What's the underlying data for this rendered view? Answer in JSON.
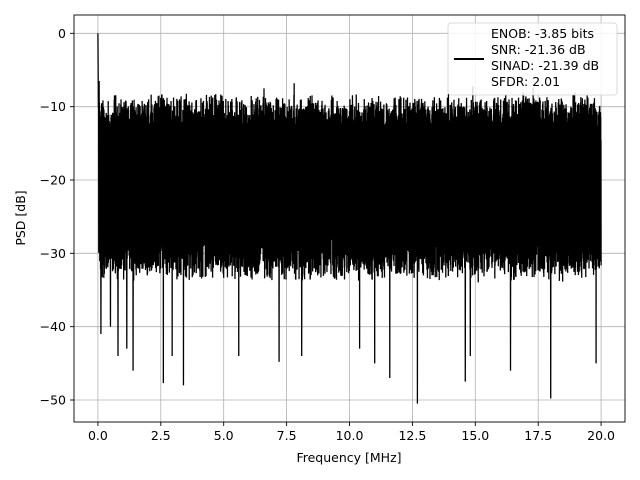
{
  "chart_data": {
    "type": "line",
    "title": "",
    "xlabel": "Frequency [MHz]",
    "ylabel": "PSD [dB]",
    "xlim": [
      -0.95,
      20.95
    ],
    "ylim": [
      -53,
      2.5
    ],
    "xticks": [
      0.0,
      2.5,
      5.0,
      7.5,
      10.0,
      12.5,
      15.0,
      17.5,
      20.0
    ],
    "xtick_labels": [
      "0.0",
      "2.5",
      "5.0",
      "7.5",
      "10.0",
      "12.5",
      "15.0",
      "17.5",
      "20.0"
    ],
    "yticks": [
      0,
      -10,
      -20,
      -30,
      -40,
      -50
    ],
    "ytick_labels": [
      "0",
      "−10",
      "−20",
      "−30",
      "−40",
      "−50"
    ],
    "grid": true,
    "legend_position": "top-right",
    "series": [
      {
        "name": "ENOB: -3.85 bits\nSNR: -21.36 dB\nSINAD: -21.39 dB\nSFDR: 2.01",
        "color": "#000000",
        "x_range": [
          0,
          20
        ],
        "peak": [
          0.0,
          0.0
        ],
        "dips": [
          [
            0.12,
            -41
          ],
          [
            0.5,
            -40
          ],
          [
            0.8,
            -44
          ],
          [
            1.15,
            -43
          ],
          [
            1.4,
            -46
          ],
          [
            2.6,
            -47.7
          ],
          [
            2.95,
            -44
          ],
          [
            3.4,
            -48
          ],
          [
            5.6,
            -44
          ],
          [
            7.2,
            -44.8
          ],
          [
            8.1,
            -44
          ],
          [
            10.4,
            -43
          ],
          [
            11.0,
            -45
          ],
          [
            11.6,
            -47
          ],
          [
            12.7,
            -50.5
          ],
          [
            14.6,
            -47.5
          ],
          [
            14.8,
            -44
          ],
          [
            16.4,
            -46
          ],
          [
            18.0,
            -49.8
          ],
          [
            19.8,
            -45
          ]
        ],
        "peaks": [
          [
            0.05,
            -6.5
          ],
          [
            6.6,
            -7.5
          ],
          [
            7.8,
            -6.8
          ],
          [
            14.9,
            -7.2
          ],
          [
            17.3,
            -7.4
          ]
        ],
        "typical_envelope": {
          "upper": -11,
          "lower": -32,
          "center": -19
        }
      }
    ],
    "legend_lines": [
      "ENOB: -3.85 bits",
      "SNR: -21.36 dB",
      "SINAD: -21.39 dB",
      "SFDR: 2.01"
    ]
  }
}
